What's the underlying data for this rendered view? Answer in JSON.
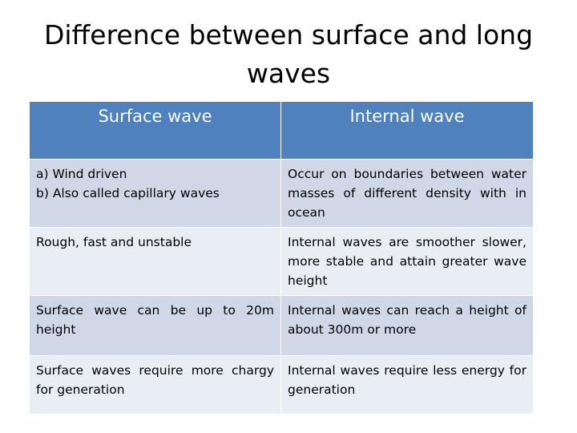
{
  "title": "Difference between surface and long waves",
  "table": {
    "header": [
      "Surface wave",
      "Internal wave"
    ],
    "rows": [
      [
        [
          "a)  Wind driven",
          "b)  Also called capillary waves"
        ],
        "Occur on boundaries between water masses of different density with in ocean"
      ],
      [
        "Rough, fast and unstable",
        "Internal waves are smoother slower, more stable and attain greater wave height"
      ],
      [
        "Surface wave can be up to 20m height",
        "Internal waves can reach a height of about 300m or more"
      ],
      [
        "Surface waves require more chargy for generation",
        "Internal waves require less energy for generation"
      ]
    ]
  }
}
